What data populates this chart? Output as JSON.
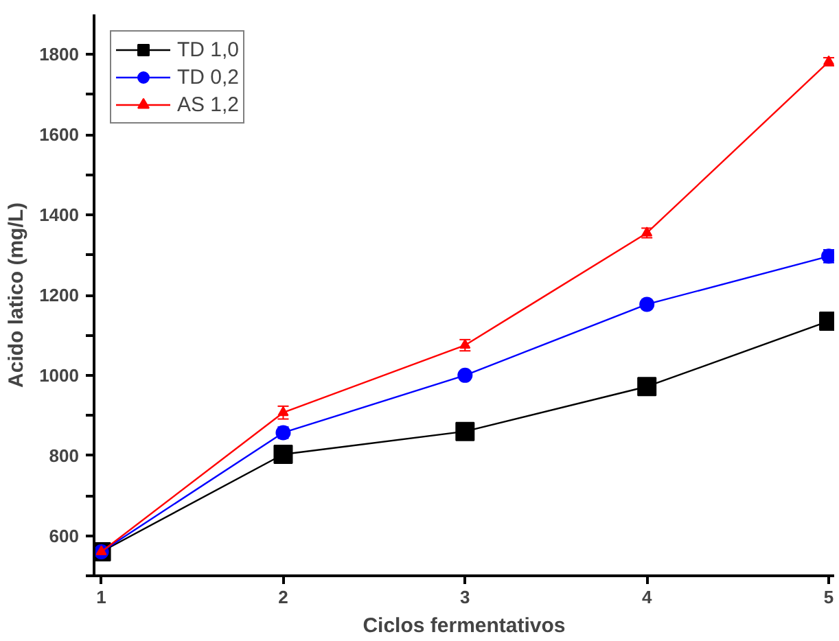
{
  "chart_data": {
    "type": "line",
    "xlabel": "Ciclos fermentativos",
    "ylabel": "Acido latico (mg/L)",
    "x": [
      1,
      2,
      3,
      4,
      5
    ],
    "series": [
      {
        "name": "TD 1,0",
        "color": "#000000",
        "marker": "square",
        "values": [
          560,
          803,
          860,
          972,
          1135
        ],
        "errors": [
          12,
          12,
          12,
          14,
          12
        ]
      },
      {
        "name": "TD 0,2",
        "color": "#0000ff",
        "marker": "circle",
        "values": [
          560,
          857,
          1000,
          1177,
          1297
        ],
        "errors": [
          18,
          14,
          10,
          12,
          16
        ]
      },
      {
        "name": "AS 1,2",
        "color": "#ff0000",
        "marker": "triangle",
        "values": [
          560,
          907,
          1075,
          1355,
          1782
        ],
        "errors": [
          12,
          16,
          14,
          12,
          10
        ]
      }
    ],
    "xlim": [
      0.96,
      5.03
    ],
    "ylim": [
      500,
      1900
    ],
    "xticks": [
      1,
      2,
      3,
      4,
      5
    ],
    "yticks": [
      {
        "value": 500,
        "label": null
      },
      600,
      {
        "value": 700,
        "label": null
      },
      800,
      {
        "value": 900,
        "label": null
      },
      1000,
      {
        "value": 1100,
        "label": null
      },
      1200,
      {
        "value": 1300,
        "label": null
      },
      1400,
      {
        "value": 1500,
        "label": null
      },
      1600,
      {
        "value": 1700,
        "label": null
      },
      1800
    ],
    "grid": false,
    "legend": "top left",
    "line_style": "solid"
  }
}
